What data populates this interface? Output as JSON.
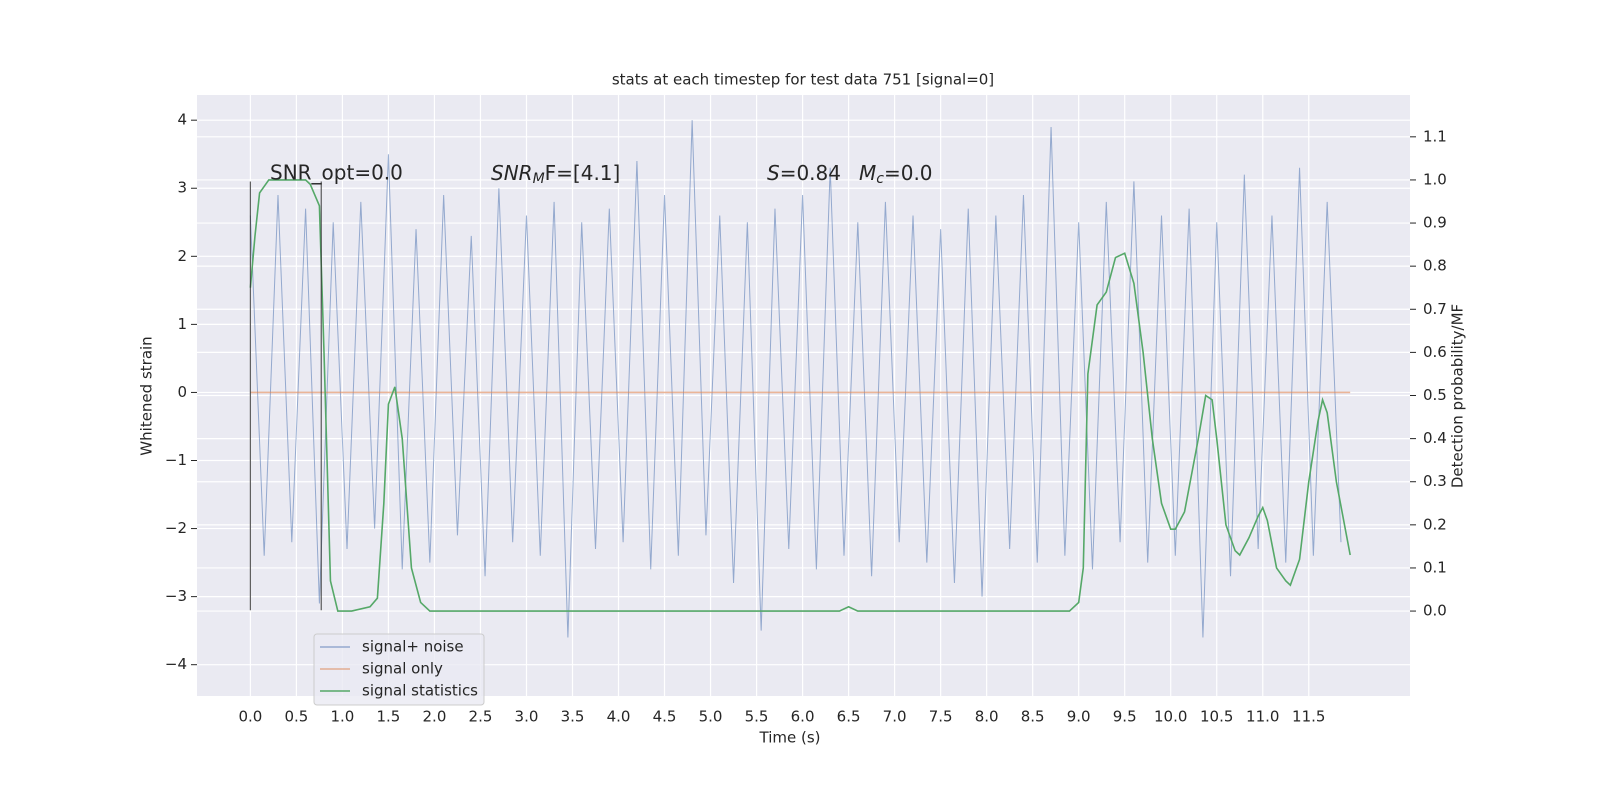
{
  "chart_data": {
    "type": "line",
    "title": "stats at each timestep for test data 751 [signal=0]",
    "xlabel": "Time (s)",
    "ylabel": "Whitened strain",
    "y2label": "Detection probability/MF",
    "xlim": [
      -0.58,
      12.6
    ],
    "ylim": [
      -4.46,
      4.37
    ],
    "y2lim": [
      -0.197,
      1.197
    ],
    "grid": true,
    "xticks": [
      {
        "value": 0,
        "label": "0.0"
      },
      {
        "value": 0.5,
        "label": "0.5"
      },
      {
        "value": 1,
        "label": "1.0"
      },
      {
        "value": 1.5,
        "label": "1.5"
      },
      {
        "value": 2,
        "label": "2.0"
      },
      {
        "value": 2.5,
        "label": "2.5"
      },
      {
        "value": 3,
        "label": "3.0"
      },
      {
        "value": 3.5,
        "label": "3.5"
      },
      {
        "value": 4,
        "label": "4.0"
      },
      {
        "value": 4.5,
        "label": "4.5"
      },
      {
        "value": 5,
        "label": "5.0"
      },
      {
        "value": 5.5,
        "label": "5.5"
      },
      {
        "value": 6,
        "label": "6.0"
      },
      {
        "value": 6.5,
        "label": "6.5"
      },
      {
        "value": 7,
        "label": "7.0"
      },
      {
        "value": 7.5,
        "label": "7.5"
      },
      {
        "value": 8,
        "label": "8.0"
      },
      {
        "value": 8.5,
        "label": "8.5"
      },
      {
        "value": 9,
        "label": "9.0"
      },
      {
        "value": 9.5,
        "label": "9.5"
      },
      {
        "value": 10,
        "label": "10.0"
      },
      {
        "value": 10.5,
        "label": "10.5"
      },
      {
        "value": 11,
        "label": "11.0"
      },
      {
        "value": 11.5,
        "label": "11.5"
      }
    ],
    "yticks": [
      {
        "value": -4,
        "label": "−4"
      },
      {
        "value": -3,
        "label": "−3"
      },
      {
        "value": -2,
        "label": "−2"
      },
      {
        "value": -1,
        "label": "−1"
      },
      0,
      1,
      2,
      3,
      4
    ],
    "y2ticks": [
      {
        "value": 0,
        "label": "0.0"
      },
      {
        "value": 0.1,
        "label": "0.1"
      },
      {
        "value": 0.2,
        "label": "0.2"
      },
      {
        "value": 0.3,
        "label": "0.3"
      },
      {
        "value": 0.4,
        "label": "0.4"
      },
      {
        "value": 0.5,
        "label": "0.5"
      },
      {
        "value": 0.6,
        "label": "0.6"
      },
      {
        "value": 0.7,
        "label": "0.7"
      },
      {
        "value": 0.8,
        "label": "0.8"
      },
      {
        "value": 0.9,
        "label": "0.9"
      },
      {
        "value": 1,
        "label": "1.0"
      },
      {
        "value": 1.1,
        "label": "1.1"
      }
    ],
    "series": [
      {
        "name": "signal+ noise",
        "color": "#4c72b0",
        "x": [
          0,
          0.15,
          0.3,
          0.45,
          0.6,
          0.75,
          0.9,
          1.05,
          1.2,
          1.35,
          1.5,
          1.65,
          1.8,
          1.95,
          2.1,
          2.25,
          2.4,
          2.55,
          2.7,
          2.85,
          3,
          3.15,
          3.3,
          3.45,
          3.6,
          3.75,
          3.9,
          4.05,
          4.2,
          4.35,
          4.5,
          4.65,
          4.8,
          4.95,
          5.1,
          5.25,
          5.4,
          5.55,
          5.7,
          5.85,
          6,
          6.15,
          6.3,
          6.45,
          6.6,
          6.75,
          6.9,
          7.05,
          7.2,
          7.35,
          7.5,
          7.65,
          7.8,
          7.95,
          8.1,
          8.25,
          8.4,
          8.55,
          8.7,
          8.85,
          9,
          9.15,
          9.3,
          9.45,
          9.6,
          9.75,
          9.9,
          10.05,
          10.2,
          10.35,
          10.5,
          10.65,
          10.8,
          10.95,
          11.1,
          11.25,
          11.4,
          11.55,
          11.7,
          11.85
        ],
        "values": [
          2.6,
          -2.4,
          2.9,
          -2.2,
          2.7,
          -3.1,
          2.5,
          -2.3,
          2.8,
          -2.0,
          3.5,
          -2.6,
          2.4,
          -2.5,
          2.9,
          -2.1,
          2.3,
          -2.7,
          3.0,
          -2.2,
          2.6,
          -2.4,
          2.8,
          -3.6,
          2.5,
          -2.3,
          2.7,
          -2.2,
          3.4,
          -2.6,
          2.9,
          -2.4,
          4.0,
          -2.1,
          2.6,
          -2.8,
          2.5,
          -3.5,
          2.7,
          -2.3,
          2.9,
          -2.6,
          3.3,
          -2.4,
          2.5,
          -2.7,
          2.8,
          -2.2,
          2.6,
          -2.5,
          2.4,
          -2.8,
          2.7,
          -3.0,
          2.6,
          -2.3,
          2.9,
          -2.5,
          3.9,
          -2.4,
          2.5,
          -2.6,
          2.8,
          -2.2,
          3.1,
          -2.5,
          2.6,
          -2.4,
          2.7,
          -3.6,
          2.5,
          -2.7,
          3.2,
          -2.3,
          2.6,
          -2.5,
          3.3,
          -2.4,
          2.8,
          -2.2
        ]
      },
      {
        "name": "signal only",
        "color": "#dd8452",
        "x": [
          0,
          11.95
        ],
        "values": [
          0,
          0
        ]
      },
      {
        "name": "signal statistics",
        "color": "#55a868",
        "axis": "y2",
        "x": [
          0,
          0.05,
          0.1,
          0.2,
          0.3,
          0.4,
          0.5,
          0.6,
          0.65,
          0.75,
          0.8,
          0.87,
          0.95,
          1.1,
          1.3,
          1.38,
          1.45,
          1.5,
          1.57,
          1.65,
          1.75,
          1.85,
          1.95,
          2.5,
          3.5,
          4.5,
          5,
          6,
          6.4,
          6.5,
          6.6,
          7,
          7.5,
          8,
          8.9,
          9,
          9.05,
          9.1,
          9.2,
          9.3,
          9.4,
          9.5,
          9.6,
          9.7,
          9.8,
          9.9,
          10,
          10.05,
          10.15,
          10.3,
          10.38,
          10.45,
          10.5,
          10.6,
          10.7,
          10.75,
          10.85,
          10.95,
          11,
          11.05,
          11.15,
          11.25,
          11.3,
          11.4,
          11.5,
          11.6,
          11.65,
          11.7,
          11.8,
          11.95
        ],
        "values": [
          0.75,
          0.87,
          0.97,
          1.0,
          1.0,
          1.0,
          1.0,
          1.0,
          0.99,
          0.94,
          0.6,
          0.07,
          0.0,
          0.0,
          0.01,
          0.03,
          0.25,
          0.48,
          0.52,
          0.4,
          0.1,
          0.02,
          0.0,
          0.0,
          0.0,
          0.0,
          0.0,
          0.0,
          0.0,
          0.01,
          0.0,
          0.0,
          0.0,
          0.0,
          0.0,
          0.02,
          0.1,
          0.55,
          0.71,
          0.74,
          0.82,
          0.83,
          0.76,
          0.6,
          0.4,
          0.25,
          0.19,
          0.19,
          0.23,
          0.4,
          0.5,
          0.49,
          0.4,
          0.2,
          0.14,
          0.13,
          0.17,
          0.22,
          0.24,
          0.21,
          0.1,
          0.07,
          0.06,
          0.12,
          0.3,
          0.44,
          0.49,
          0.46,
          0.3,
          0.13
        ]
      }
    ],
    "vlines": {
      "x": [
        0,
        0.77
      ],
      "ymin": -3.2,
      "ymax": 3.1
    },
    "annotations": {
      "snr_opt": "SNR_opt=0.0",
      "snr_mf": {
        "base": "SNR",
        "sub": "M",
        "rest": "F=[4.1]"
      },
      "s": {
        "base": "S",
        "rest": "=0.84"
      },
      "mc": {
        "base": "M",
        "sub": "c",
        "rest": "=0.0"
      }
    },
    "legend": "lower left"
  }
}
